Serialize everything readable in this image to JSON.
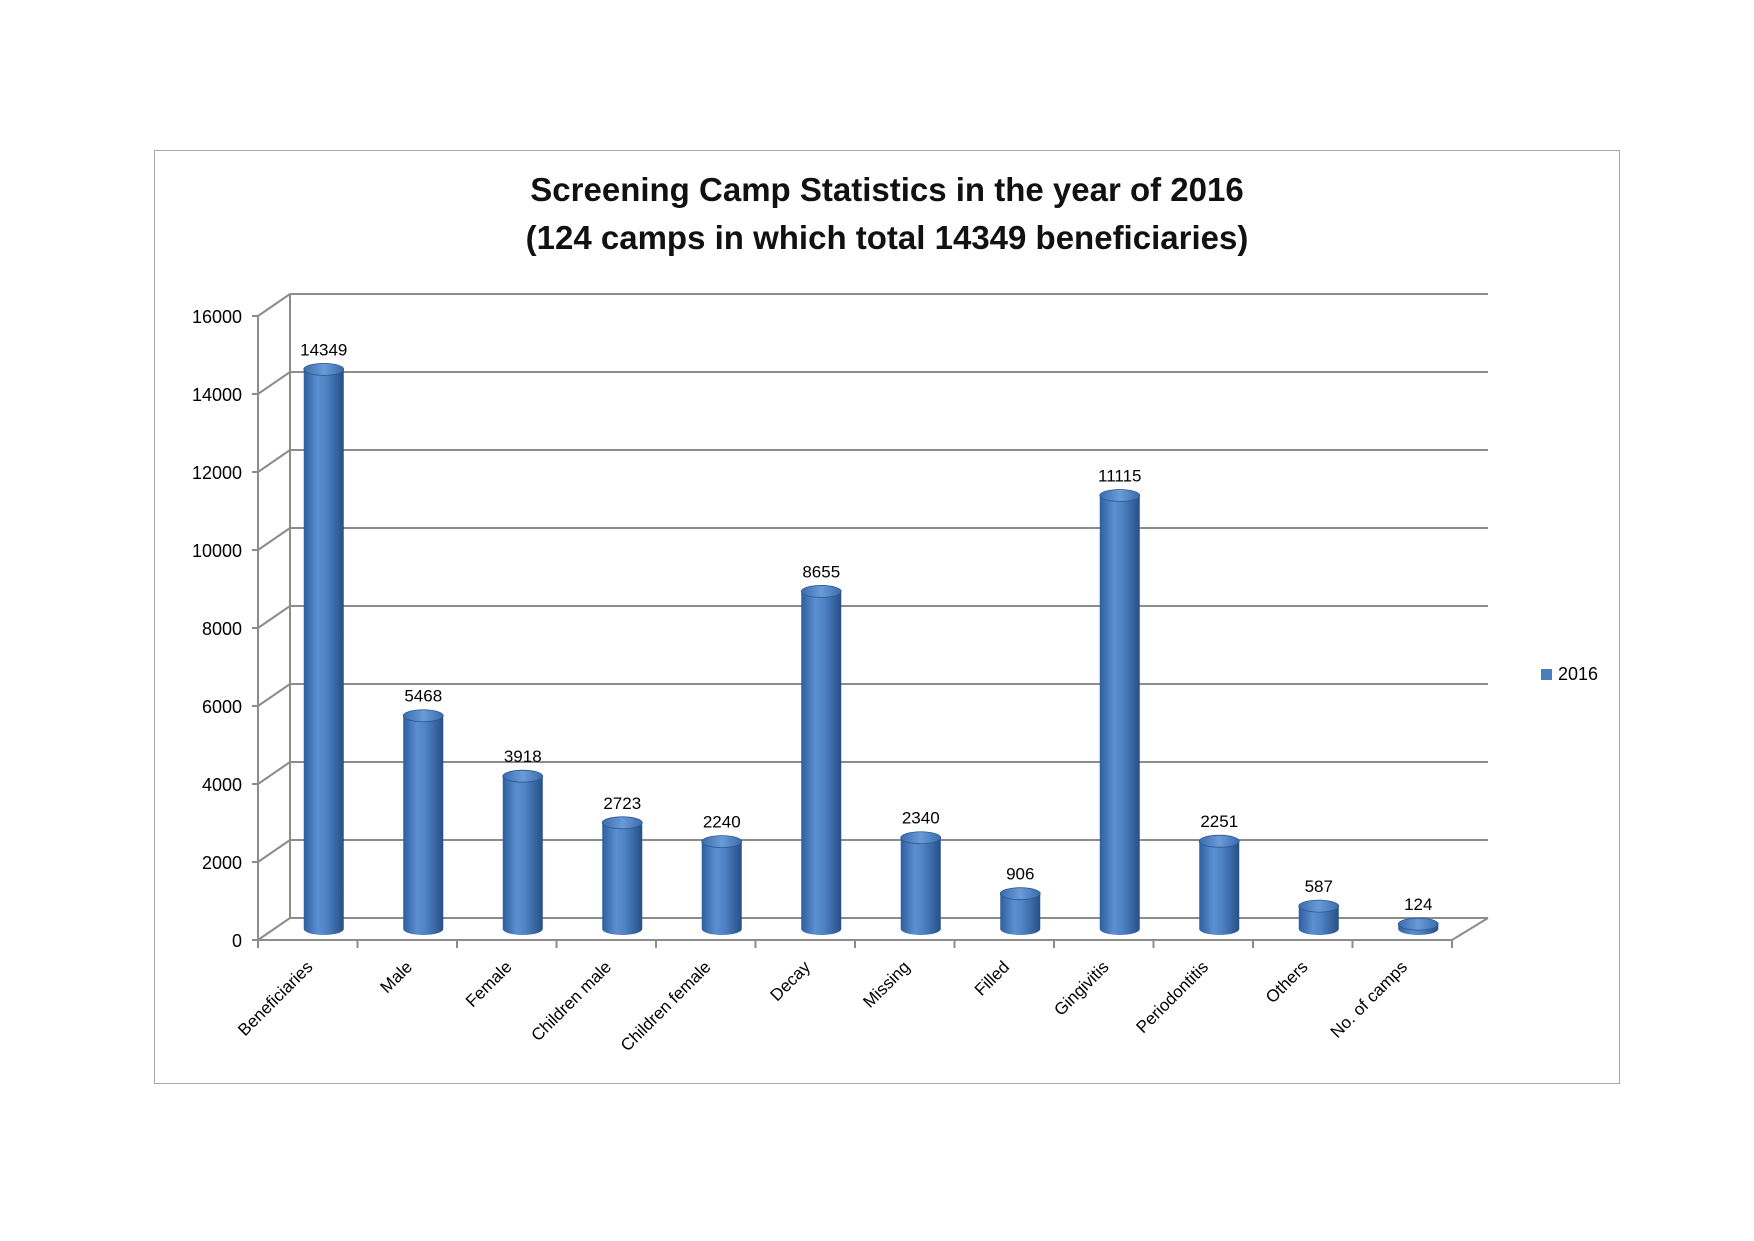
{
  "chart_data": {
    "type": "bar",
    "title": "Screening Camp Statistics in the year of 2016",
    "subtitle": "(124 camps in which total 14349 beneficiaries)",
    "categories": [
      "Beneficiaries",
      "Male",
      "Female",
      "Children male",
      "Children female",
      "Decay",
      "Missing",
      "Filled",
      "Gingivitis",
      "Periodontitis",
      "Others",
      "No. of camps"
    ],
    "series": [
      {
        "name": "2016",
        "values": [
          14349,
          5468,
          3918,
          2723,
          2240,
          8655,
          2340,
          906,
          11115,
          2251,
          587,
          124
        ],
        "color": "#4a7ebb"
      }
    ],
    "ylim": [
      0,
      16000
    ],
    "yticks": [
      "0",
      "2000",
      "4000",
      "6000",
      "8000",
      "10000",
      "12000",
      "14000",
      "16000"
    ],
    "data_labels": [
      "14349",
      "5468",
      "3918",
      "2723",
      "2240",
      "8655",
      "2340",
      "906",
      "11115",
      "2251",
      "587",
      "124"
    ],
    "grid": true,
    "legend_position": "right",
    "bar_shape": "3d-cylinder"
  }
}
